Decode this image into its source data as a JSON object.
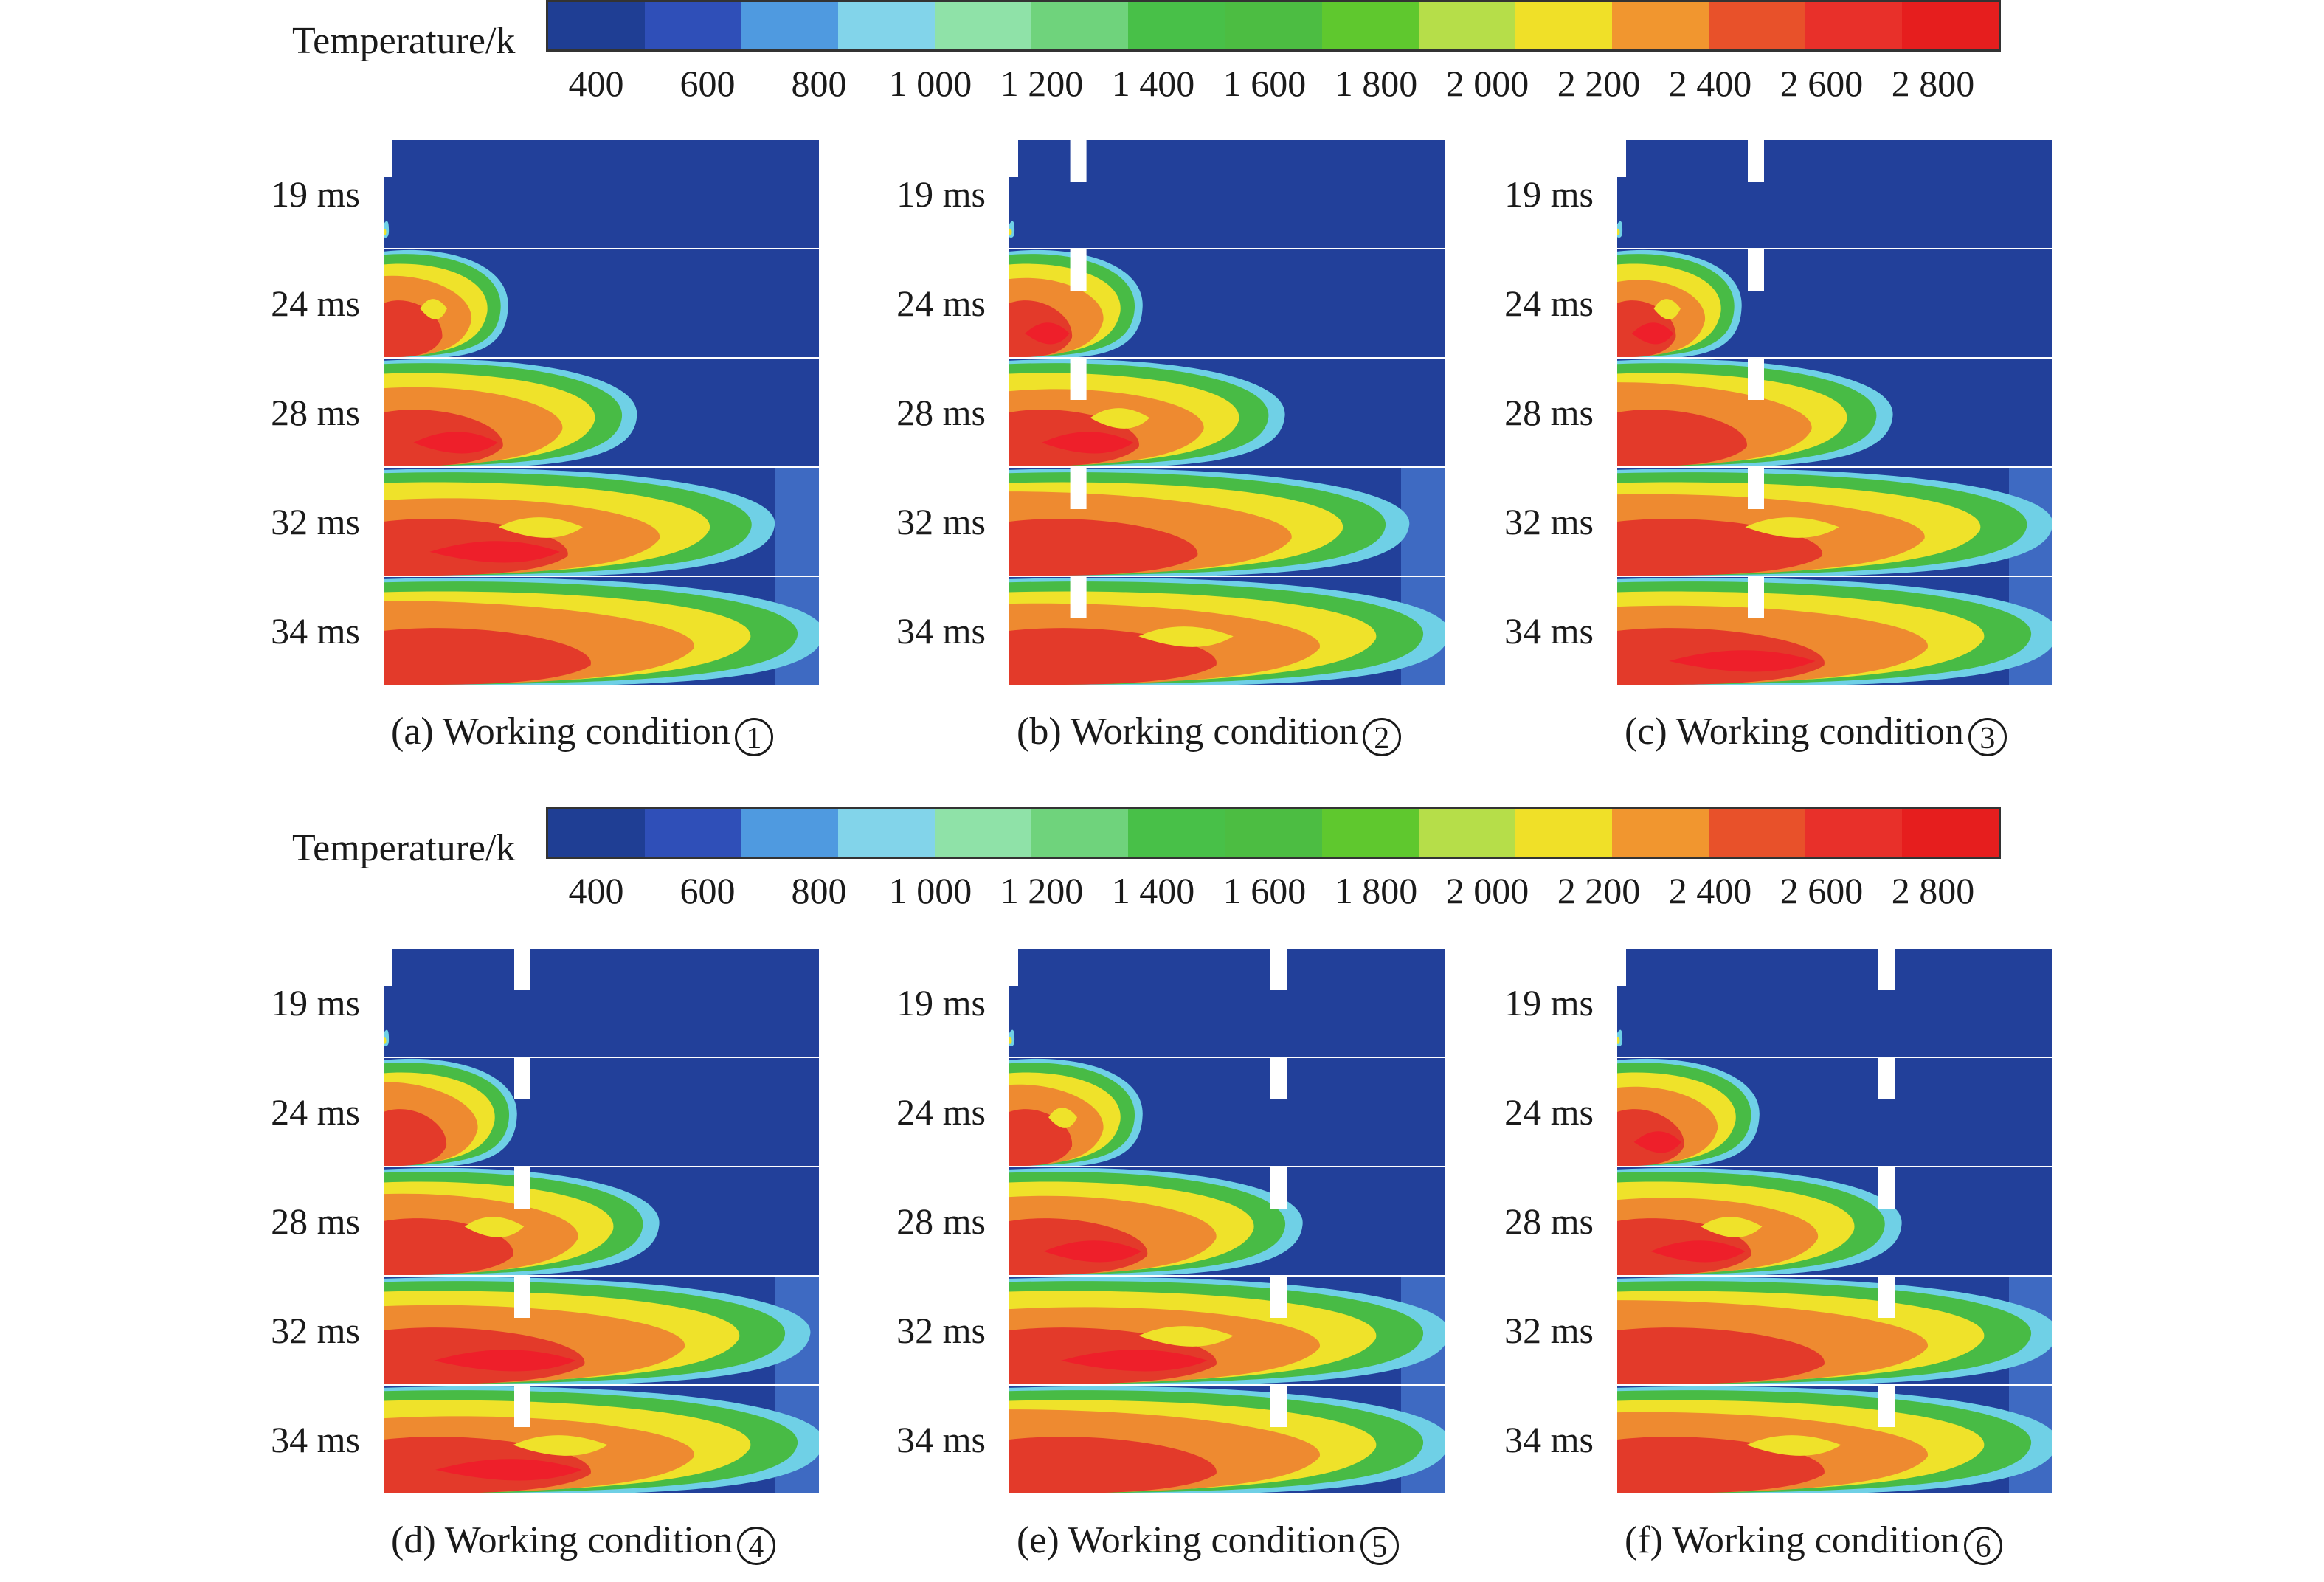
{
  "colorbar": {
    "title": "Temperature/k",
    "ticks": [
      "400",
      "600",
      "800",
      "1 000",
      "1 200",
      "1 400",
      "1 600",
      "1 800",
      "2 000",
      "2 200",
      "2 400",
      "2 600",
      "2 800"
    ],
    "colors": [
      "#1f3e94",
      "#2f4fb8",
      "#4f9ae0",
      "#82d4ea",
      "#8fe2a8",
      "#6fd37c",
      "#48c048",
      "#4cbd42",
      "#5fc82e",
      "#b6de49",
      "#f0e028",
      "#f1962f",
      "#e8512a",
      "#e8302a",
      "#e61e1e"
    ]
  },
  "time_labels": [
    "19 ms",
    "24 ms",
    "28 ms",
    "32 ms",
    "34 ms"
  ],
  "panels": [
    {
      "caption": "(a) Working condition",
      "number": "1"
    },
    {
      "caption": "(b) Working condition",
      "number": "2"
    },
    {
      "caption": "(c) Working condition",
      "number": "3"
    },
    {
      "caption": "(d) Working condition",
      "number": "4"
    },
    {
      "caption": "(e) Working condition",
      "number": "5"
    },
    {
      "caption": "(f) Working condition",
      "number": "6"
    }
  ],
  "field_colors": {
    "cold": "#22409a",
    "mid": "#3e6ac2",
    "cyan": "#6fd0e6",
    "green": "#48bb45",
    "yellow": "#efe22a",
    "orange": "#ee8a30",
    "red": "#e33a2a",
    "hot": "#ee1f2a"
  }
}
